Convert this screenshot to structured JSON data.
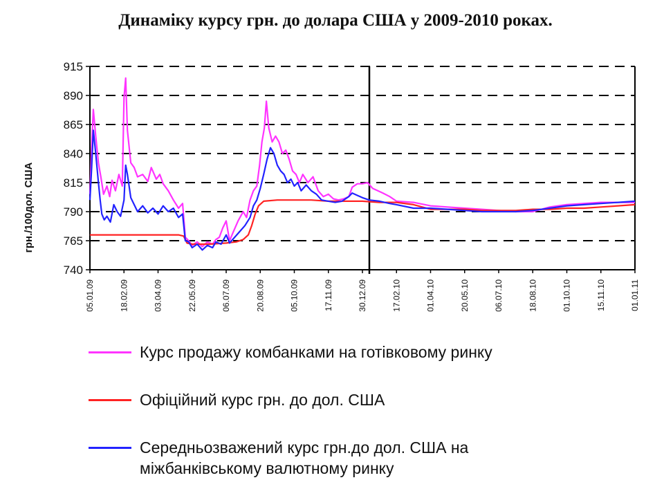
{
  "chart_data": {
    "type": "line",
    "title": "Динаміку курсу грн. до долара США у 2009-2010 роках.",
    "ylabel": "грн./100дол. США",
    "xlabel": "",
    "ylim": [
      740,
      915
    ],
    "yticks": [
      740,
      765,
      790,
      815,
      840,
      865,
      890,
      915
    ],
    "grid": "horizontal-dashed",
    "x_ticks": [
      "05.01.09",
      "18.02.09",
      "03.04.09",
      "22.05.09",
      "06.07.09",
      "20.08.09",
      "05.10.09",
      "17.11.09",
      "30.12.09",
      "17.02.10",
      "01.04.10",
      "20.05.10",
      "06.07.10",
      "18.08.10",
      "01.10.10",
      "15.11.10",
      "01.01.11"
    ],
    "x_range": [
      0,
      16
    ],
    "divider_at": "30.12.09",
    "legend_position": "bottom",
    "series": [
      {
        "name": "Курс продажу комбанками на готівковому ринку",
        "color": "#ff33ff",
        "points": [
          [
            0,
            805
          ],
          [
            0.05,
            845
          ],
          [
            0.1,
            878
          ],
          [
            0.17,
            855
          ],
          [
            0.25,
            832
          ],
          [
            0.32,
            820
          ],
          [
            0.4,
            805
          ],
          [
            0.5,
            812
          ],
          [
            0.58,
            803
          ],
          [
            0.65,
            817
          ],
          [
            0.75,
            808
          ],
          [
            0.85,
            822
          ],
          [
            0.95,
            812
          ],
          [
            1.0,
            888
          ],
          [
            1.05,
            905
          ],
          [
            1.1,
            860
          ],
          [
            1.2,
            832
          ],
          [
            1.3,
            828
          ],
          [
            1.4,
            820
          ],
          [
            1.55,
            822
          ],
          [
            1.7,
            816
          ],
          [
            1.8,
            828
          ],
          [
            1.95,
            818
          ],
          [
            2.05,
            822
          ],
          [
            2.15,
            814
          ],
          [
            2.3,
            808
          ],
          [
            2.45,
            800
          ],
          [
            2.6,
            793
          ],
          [
            2.72,
            797
          ],
          [
            2.8,
            768
          ],
          [
            2.9,
            765
          ],
          [
            3.0,
            761
          ],
          [
            3.15,
            764
          ],
          [
            3.3,
            760
          ],
          [
            3.45,
            764
          ],
          [
            3.6,
            762
          ],
          [
            3.7,
            766
          ],
          [
            3.8,
            768
          ],
          [
            3.9,
            776
          ],
          [
            4.0,
            782
          ],
          [
            4.1,
            765
          ],
          [
            4.2,
            772
          ],
          [
            4.35,
            782
          ],
          [
            4.5,
            790
          ],
          [
            4.6,
            785
          ],
          [
            4.7,
            800
          ],
          [
            4.8,
            808
          ],
          [
            4.9,
            812
          ],
          [
            4.98,
            830
          ],
          [
            5.05,
            850
          ],
          [
            5.12,
            862
          ],
          [
            5.18,
            885
          ],
          [
            5.25,
            862
          ],
          [
            5.35,
            850
          ],
          [
            5.45,
            855
          ],
          [
            5.55,
            850
          ],
          [
            5.65,
            840
          ],
          [
            5.75,
            843
          ],
          [
            5.85,
            835
          ],
          [
            5.95,
            825
          ],
          [
            6.05,
            822
          ],
          [
            6.15,
            815
          ],
          [
            6.25,
            822
          ],
          [
            6.4,
            815
          ],
          [
            6.55,
            820
          ],
          [
            6.7,
            808
          ],
          [
            6.85,
            803
          ],
          [
            7.0,
            805
          ],
          [
            7.15,
            801
          ],
          [
            7.3,
            800
          ],
          [
            7.45,
            801
          ],
          [
            7.6,
            803
          ],
          [
            7.7,
            811
          ],
          [
            7.85,
            814
          ],
          [
            8.0,
            814
          ],
          [
            8.15,
            815
          ],
          [
            8.3,
            810
          ],
          [
            8.45,
            808
          ],
          [
            8.6,
            806
          ],
          [
            8.8,
            803
          ],
          [
            9.0,
            799
          ],
          [
            9.5,
            798
          ],
          [
            10,
            795
          ],
          [
            10.5,
            794
          ],
          [
            11,
            793
          ],
          [
            11.5,
            792
          ],
          [
            12,
            791
          ],
          [
            12.5,
            790
          ],
          [
            13,
            790
          ],
          [
            13.5,
            794
          ],
          [
            14,
            796
          ],
          [
            14.5,
            797
          ],
          [
            15,
            798
          ],
          [
            15.5,
            798
          ],
          [
            16,
            798
          ]
        ]
      },
      {
        "name": "Офіційний курс грн. до дол. США",
        "color": "#ff2222",
        "points": [
          [
            0,
            770
          ],
          [
            1.0,
            770
          ],
          [
            2.0,
            770
          ],
          [
            2.6,
            770
          ],
          [
            2.75,
            769
          ],
          [
            2.85,
            763
          ],
          [
            3.0,
            762
          ],
          [
            3.5,
            762
          ],
          [
            4.0,
            763
          ],
          [
            4.3,
            764
          ],
          [
            4.5,
            766
          ],
          [
            4.65,
            770
          ],
          [
            4.75,
            778
          ],
          [
            4.85,
            788
          ],
          [
            4.95,
            795
          ],
          [
            5.1,
            799
          ],
          [
            5.5,
            800
          ],
          [
            6.0,
            800
          ],
          [
            6.5,
            800
          ],
          [
            7.0,
            799
          ],
          [
            7.5,
            799
          ],
          [
            8.0,
            799
          ],
          [
            8.5,
            798
          ],
          [
            9.0,
            798
          ],
          [
            9.5,
            796
          ],
          [
            10,
            792
          ],
          [
            10.5,
            792
          ],
          [
            11,
            792
          ],
          [
            11.5,
            791
          ],
          [
            12,
            791
          ],
          [
            12.5,
            791
          ],
          [
            13,
            792
          ],
          [
            13.5,
            792
          ],
          [
            14,
            793
          ],
          [
            14.5,
            793
          ],
          [
            15,
            794
          ],
          [
            15.5,
            795
          ],
          [
            16,
            796
          ]
        ]
      },
      {
        "name": "Середньозважений курс грн.до  дол. США на міжбанківському валютному ринку",
        "color": "#2222ff",
        "points": [
          [
            0,
            800
          ],
          [
            0.05,
            828
          ],
          [
            0.1,
            860
          ],
          [
            0.17,
            840
          ],
          [
            0.25,
            815
          ],
          [
            0.3,
            800
          ],
          [
            0.35,
            788
          ],
          [
            0.42,
            783
          ],
          [
            0.5,
            786
          ],
          [
            0.6,
            781
          ],
          [
            0.7,
            796
          ],
          [
            0.8,
            790
          ],
          [
            0.9,
            786
          ],
          [
            1.0,
            800
          ],
          [
            1.05,
            830
          ],
          [
            1.1,
            822
          ],
          [
            1.2,
            802
          ],
          [
            1.3,
            796
          ],
          [
            1.4,
            790
          ],
          [
            1.55,
            795
          ],
          [
            1.7,
            789
          ],
          [
            1.85,
            793
          ],
          [
            2.0,
            788
          ],
          [
            2.15,
            795
          ],
          [
            2.3,
            790
          ],
          [
            2.45,
            793
          ],
          [
            2.6,
            785
          ],
          [
            2.72,
            788
          ],
          [
            2.8,
            765
          ],
          [
            2.9,
            764
          ],
          [
            3.0,
            759
          ],
          [
            3.15,
            762
          ],
          [
            3.3,
            757
          ],
          [
            3.45,
            761
          ],
          [
            3.6,
            759
          ],
          [
            3.7,
            764
          ],
          [
            3.85,
            762
          ],
          [
            4.0,
            770
          ],
          [
            4.1,
            763
          ],
          [
            4.25,
            768
          ],
          [
            4.4,
            773
          ],
          [
            4.55,
            778
          ],
          [
            4.7,
            785
          ],
          [
            4.8,
            795
          ],
          [
            4.9,
            800
          ],
          [
            5.0,
            810
          ],
          [
            5.1,
            822
          ],
          [
            5.2,
            835
          ],
          [
            5.3,
            845
          ],
          [
            5.4,
            840
          ],
          [
            5.5,
            830
          ],
          [
            5.6,
            825
          ],
          [
            5.7,
            822
          ],
          [
            5.8,
            815
          ],
          [
            5.9,
            818
          ],
          [
            6.0,
            812
          ],
          [
            6.1,
            815
          ],
          [
            6.2,
            808
          ],
          [
            6.35,
            813
          ],
          [
            6.5,
            808
          ],
          [
            6.65,
            805
          ],
          [
            6.8,
            800
          ],
          [
            7.0,
            799
          ],
          [
            7.2,
            798
          ],
          [
            7.4,
            799
          ],
          [
            7.6,
            803
          ],
          [
            7.7,
            806
          ],
          [
            7.85,
            804
          ],
          [
            8.0,
            802
          ],
          [
            8.2,
            800
          ],
          [
            8.5,
            799
          ],
          [
            8.8,
            797
          ],
          [
            9.0,
            796
          ],
          [
            9.5,
            793
          ],
          [
            10,
            793
          ],
          [
            10.5,
            792
          ],
          [
            11,
            791
          ],
          [
            11.5,
            790
          ],
          [
            12,
            790
          ],
          [
            12.5,
            790
          ],
          [
            13,
            791
          ],
          [
            13.5,
            793
          ],
          [
            14,
            795
          ],
          [
            14.5,
            796
          ],
          [
            15,
            797
          ],
          [
            15.5,
            798
          ],
          [
            16,
            799
          ]
        ]
      }
    ]
  }
}
